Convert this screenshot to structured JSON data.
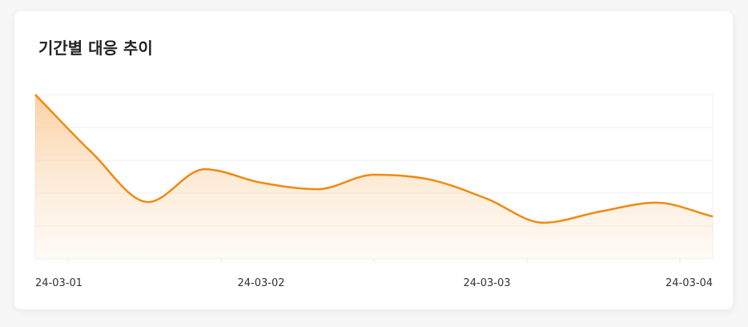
{
  "chart_data": {
    "type": "area",
    "title": "기간별 대응 추이",
    "categories": [
      "24-03-01",
      null,
      null,
      null,
      "24-03-02",
      null,
      null,
      null,
      "24-03-03",
      null,
      null,
      null,
      "24-03-04"
    ],
    "values": [
      5.0,
      3.24,
      1.73,
      2.73,
      2.32,
      2.12,
      2.56,
      2.41,
      1.83,
      1.1,
      1.44,
      1.71,
      1.29
    ],
    "color": "#ef8a12",
    "ylim": [
      0,
      5
    ],
    "yticks": [
      0,
      1,
      2,
      3,
      4,
      5
    ],
    "grid": true
  }
}
